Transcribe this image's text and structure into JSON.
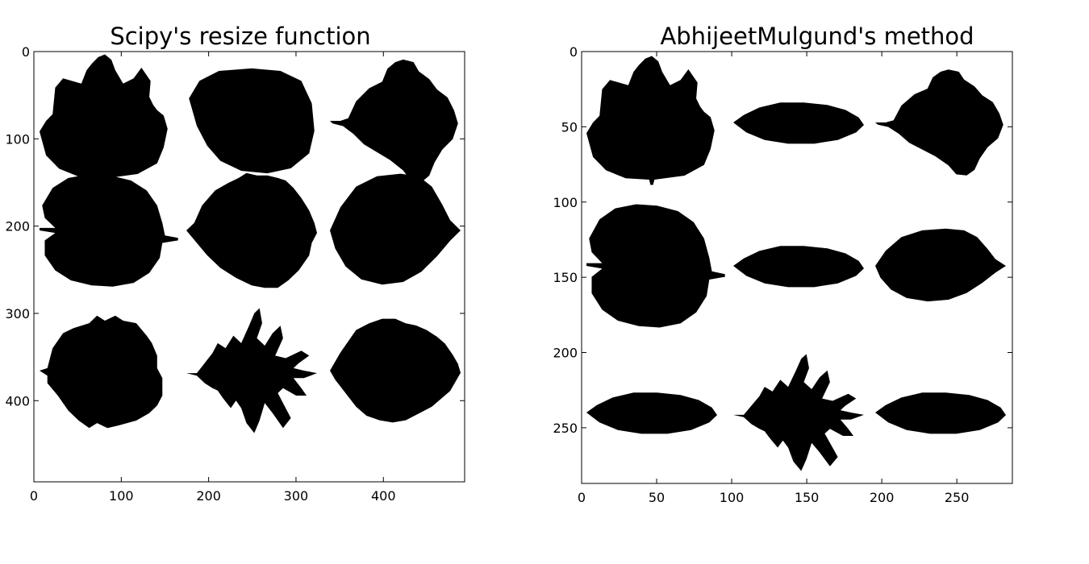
{
  "chart_data": [
    {
      "type": "image",
      "title": "Scipy's resize function",
      "xlabel": "",
      "ylabel": "",
      "xlim": [
        0,
        493
      ],
      "ylim": [
        493,
        0
      ],
      "xticks": [
        0,
        100,
        200,
        300,
        400
      ],
      "yticks": [
        0,
        100,
        200,
        300,
        400
      ],
      "grid": false,
      "colormap": {
        "foreground": "#000000",
        "background": "#ffffff"
      },
      "leaves": [
        {
          "row": 0,
          "col": 0,
          "shape": "maple"
        },
        {
          "row": 0,
          "col": 1,
          "shape": "round"
        },
        {
          "row": 0,
          "col": 2,
          "shape": "lobed"
        },
        {
          "row": 1,
          "col": 0,
          "shape": "notched-round"
        },
        {
          "row": 1,
          "col": 1,
          "shape": "serrated-oval"
        },
        {
          "row": 1,
          "col": 2,
          "shape": "pointed-oval"
        },
        {
          "row": 2,
          "col": 0,
          "shape": "toothed-oval"
        },
        {
          "row": 2,
          "col": 1,
          "shape": "oak"
        },
        {
          "row": 2,
          "col": 2,
          "shape": "serrated-ovate"
        }
      ]
    },
    {
      "type": "image",
      "title": "AbhijeetMulgund's method",
      "xlabel": "",
      "ylabel": "",
      "xlim": [
        0,
        287
      ],
      "ylim": [
        287,
        0
      ],
      "xticks": [
        0,
        50,
        100,
        150,
        200,
        250
      ],
      "yticks": [
        0,
        50,
        100,
        150,
        200,
        250
      ],
      "grid": false,
      "colormap": {
        "foreground": "#000000",
        "background": "#ffffff"
      },
      "leaves": [
        {
          "row": 0,
          "col": 0,
          "shape": "maple"
        },
        {
          "row": 0,
          "col": 1,
          "shape": "flat-oval"
        },
        {
          "row": 0,
          "col": 2,
          "shape": "lobed"
        },
        {
          "row": 1,
          "col": 0,
          "shape": "notched-round"
        },
        {
          "row": 1,
          "col": 1,
          "shape": "flat-oval"
        },
        {
          "row": 1,
          "col": 2,
          "shape": "pointed-oval"
        },
        {
          "row": 2,
          "col": 0,
          "shape": "flat-oval"
        },
        {
          "row": 2,
          "col": 1,
          "shape": "oak"
        },
        {
          "row": 2,
          "col": 2,
          "shape": "flat-oval"
        }
      ]
    }
  ]
}
